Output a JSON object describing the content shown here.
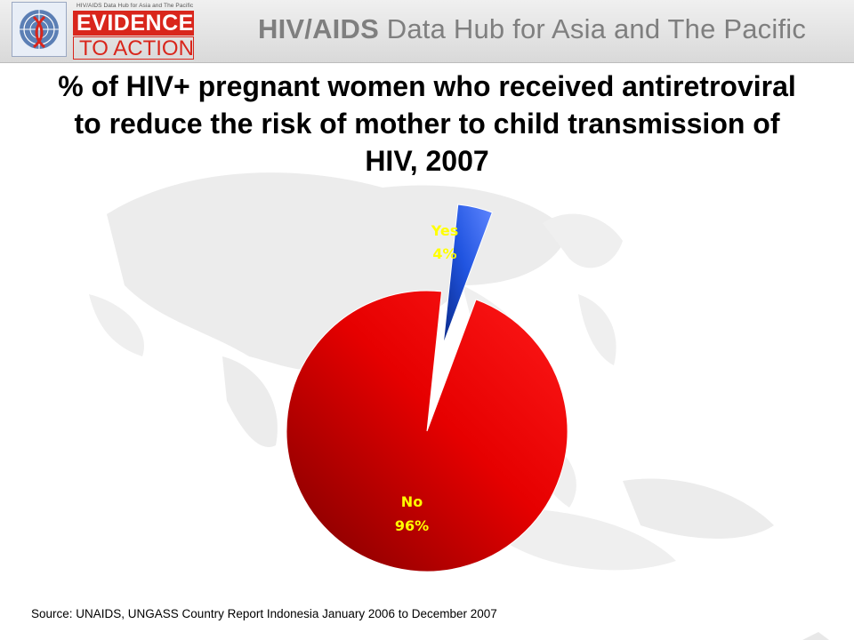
{
  "header": {
    "logo_subtitle": "HIV/AIDS Data Hub for Asia and The Pacific",
    "logo_line1": "EVIDENCE",
    "logo_line2": "TO ACTION",
    "banner_bold": "HIV/AIDS",
    "banner_rest": " Data Hub for Asia and The Pacific"
  },
  "chart_data": {
    "type": "pie",
    "title": "% of HIV+ pregnant women who received antiretroviral to reduce the risk of mother to child transmission of HIV, 2007",
    "slices": [
      {
        "label": "Yes",
        "value": 4,
        "value_label": "4%",
        "color": "#1f4fd1",
        "exploded": true
      },
      {
        "label": "No",
        "value": 96,
        "value_label": "96%",
        "color": "#e60000",
        "exploded": false
      }
    ],
    "label_color": "#ffff00"
  },
  "source": "Source: UNAIDS, UNGASS Country Report Indonesia January 2006 to December 2007"
}
